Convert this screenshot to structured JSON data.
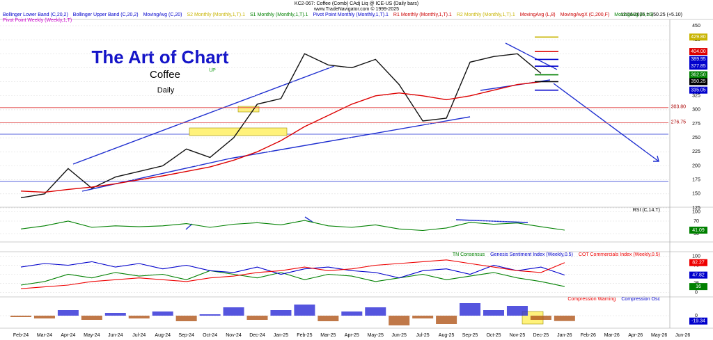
{
  "header": {
    "title": "KC2-067: Coffee (Comb) CAdj Liq @ ICE-US (Daily bars)",
    "copyright": "www.TradeNavigator.com © 1999-2025",
    "last": "12/26/2025 = 350.25 (+5.10)",
    "legend": [
      {
        "text": "Bollinger Lower Band (C,20,2)",
        "color": "#0000cc"
      },
      {
        "text": "Bollinger Upper Band (C,20,2)",
        "color": "#0000cc"
      },
      {
        "text": "MovingAvg (C,20)",
        "color": "#0000cc"
      },
      {
        "text": "S2 Monthly (Monthly,1,T).1",
        "color": "#c8b400"
      },
      {
        "text": "S1 Monthly (Monthly,1,T).1",
        "color": "#008000"
      },
      {
        "text": "Pivot Point Monthly (Monthly,1,T).1",
        "color": "#0000cc"
      },
      {
        "text": "R1 Monthly (Monthly,1,T).1",
        "color": "#cc0000"
      },
      {
        "text": "R2 Monthly (Monthly,1,T).1",
        "color": "#c8b400"
      },
      {
        "text": "MovingAvg (L,8)",
        "color": "#cc0000"
      },
      {
        "text": "MovingAvgX (C,200,F)",
        "color": "#cc0000"
      },
      {
        "text": "MovingAvg (H,10)",
        "color": "#008000"
      }
    ],
    "legend2": {
      "text": "Pivot Point Weekly (Weekly,1,T)",
      "color": "#cc00cc"
    }
  },
  "chart_data": [
    {
      "type": "line",
      "title": "The Art of Chart",
      "subtitle": "Coffee",
      "period": "Daily",
      "annotation": "UP",
      "categories": [
        "Feb-24",
        "Mar-24",
        "Apr-24",
        "May-24",
        "Jun-24",
        "Jul-24",
        "Aug-24",
        "Sep-24",
        "Oct-24",
        "Nov-24",
        "Dec-24",
        "Jan-25",
        "Feb-25",
        "Mar-25",
        "Apr-25",
        "May-25",
        "Jun-25",
        "Jul-25",
        "Aug-25",
        "Sep-25",
        "Oct-25",
        "Nov-25",
        "Dec-25",
        "Jan-26",
        "Feb-26",
        "Mar-26",
        "Apr-26",
        "May-26",
        "Jun-26"
      ],
      "series": [
        {
          "name": "Price",
          "color": "#111111",
          "values": [
            143,
            150,
            195,
            160,
            180,
            190,
            200,
            230,
            215,
            250,
            310,
            320,
            400,
            380,
            375,
            390,
            345,
            280,
            285,
            385,
            395,
            400,
            365,
            null,
            null,
            null,
            null,
            null,
            null
          ]
        },
        {
          "name": "MovingAvgX (C,200,F)",
          "color": "#dd0000",
          "values": [
            155,
            153,
            158,
            162,
            168,
            175,
            182,
            190,
            198,
            210,
            225,
            245,
            270,
            290,
            310,
            325,
            330,
            325,
            318,
            325,
            335,
            345,
            350,
            null,
            null,
            null,
            null,
            null,
            null
          ]
        }
      ],
      "ylim": [
        125,
        460
      ],
      "yticks": [
        125,
        150,
        175,
        200,
        225,
        250,
        275,
        300,
        325,
        350,
        375,
        400,
        425,
        450
      ],
      "levels": [
        {
          "value": 429.8,
          "label": "429.80",
          "color": "#c8b400"
        },
        {
          "value": 404,
          "label": "404.00",
          "color": "#dd0000"
        },
        {
          "value": 389.95,
          "label": "389.95",
          "color": "#0000cc"
        },
        {
          "value": 377.85,
          "label": "377.85",
          "color": "#0000cc"
        },
        {
          "value": 362.5,
          "label": "362.50",
          "color": "#008000"
        },
        {
          "value": 350.25,
          "label": "350.25",
          "color": "#000000"
        },
        {
          "value": 335.05,
          "label": "335.05",
          "color": "#0000cc"
        }
      ],
      "hlines": [
        {
          "value": 303.8,
          "label": "303.80",
          "color": "#e04040"
        },
        {
          "value": 276.75,
          "label": "276.75",
          "color": "#e04040"
        }
      ]
    },
    {
      "type": "line",
      "title": "RSI (C,14,T)",
      "ylim": [
        10,
        110
      ],
      "yticks": [
        30,
        70,
        100
      ],
      "series": [
        {
          "name": "RSI",
          "color": "#008000",
          "values": [
            45,
            55,
            70,
            50,
            55,
            52,
            55,
            62,
            50,
            60,
            65,
            58,
            72,
            55,
            50,
            58,
            45,
            40,
            48,
            66,
            60,
            64,
            52,
            41.09,
            null,
            null,
            null,
            null,
            null
          ]
        }
      ]
    },
    {
      "type": "line",
      "ylim": [
        -5,
        105
      ],
      "yticks": [
        0,
        25,
        50,
        75,
        100
      ],
      "series": [
        {
          "name": "TN Consensus",
          "color": "#008000",
          "values": [
            20,
            30,
            50,
            40,
            55,
            45,
            50,
            35,
            60,
            50,
            40,
            55,
            35,
            50,
            45,
            30,
            40,
            50,
            35,
            45,
            55,
            40,
            30,
            16,
            null,
            null,
            null,
            null,
            null
          ]
        },
        {
          "name": "Genesis Sentiment Index (Weekly,0.5)",
          "color": "#0000cc",
          "values": [
            70,
            80,
            75,
            85,
            70,
            80,
            65,
            75,
            60,
            55,
            70,
            50,
            65,
            70,
            60,
            55,
            40,
            60,
            65,
            50,
            75,
            60,
            70,
            47.82,
            null,
            null,
            null,
            null,
            null
          ]
        },
        {
          "name": "COT Commercials Index (Weekly,0.5)",
          "color": "#ee0000",
          "values": [
            10,
            15,
            20,
            30,
            35,
            40,
            35,
            30,
            40,
            45,
            55,
            60,
            70,
            60,
            65,
            75,
            80,
            85,
            90,
            80,
            70,
            60,
            55,
            82.27,
            null,
            null,
            null,
            null,
            null
          ]
        }
      ]
    },
    {
      "type": "bar",
      "ylim": [
        -40,
        60
      ],
      "yticks": [
        0
      ],
      "series": [
        {
          "name": "Compression Warning",
          "color": "#ee0000",
          "values": [
            -5,
            -10,
            20,
            -15,
            10,
            -10,
            15,
            -20,
            5,
            30,
            -15,
            20,
            40,
            -20,
            15,
            30,
            -35,
            -10,
            -30,
            45,
            20,
            35,
            -15,
            -19.34,
            null,
            null,
            null,
            null,
            null
          ]
        },
        {
          "name": "Compression Osc",
          "color": "#0000cc"
        }
      ]
    }
  ]
}
